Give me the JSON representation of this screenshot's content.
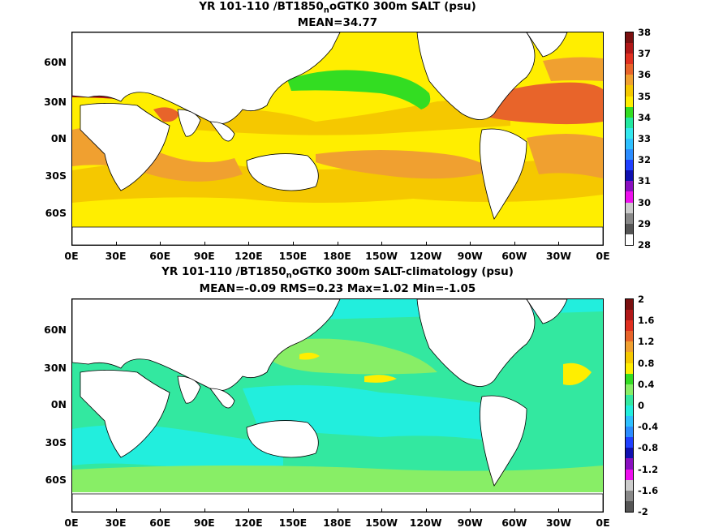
{
  "panels": [
    {
      "title_prefix": "YR 101-110 /BT1850",
      "title_sub": "n",
      "title_suffix": "oGTK0 300m SALT (psu)",
      "stats": "MEAN=34.77",
      "colorbar": {
        "labels": [
          "38",
          "37",
          "36",
          "35",
          "34",
          "33",
          "32",
          "31",
          "30",
          "29",
          "28"
        ],
        "colors": [
          "#7a1010",
          "#b01818",
          "#e03020",
          "#e8642a",
          "#f0a030",
          "#f5c800",
          "#ffee00",
          "#33dd22",
          "#22e8a0",
          "#33e8ee",
          "#2ec0ff",
          "#2b8cff",
          "#2040ff",
          "#1010b0",
          "#8a10c0",
          "#ee10ee",
          "#cccccc",
          "#888888",
          "#555555",
          "#ffffff"
        ]
      }
    },
    {
      "title_prefix": "YR 101-110 /BT1850",
      "title_sub": "n",
      "title_suffix": "oGTK0 300m SALT-climatology (psu)",
      "stats": "MEAN=-0.09   RMS=0.23   Max=1.02   Min=-1.05",
      "colorbar": {
        "labels": [
          "2",
          "1.6",
          "1.2",
          "0.8",
          "0.4",
          "0",
          "-0.4",
          "-0.8",
          "-1.2",
          "-1.6",
          "-2"
        ],
        "colors": [
          "#7a1010",
          "#b01818",
          "#e03020",
          "#e8642a",
          "#f0a030",
          "#f5c800",
          "#ffee00",
          "#33dd22",
          "#88ee66",
          "#33e8a0",
          "#22eedd",
          "#2ec0ff",
          "#2b8cff",
          "#2040ff",
          "#1010b0",
          "#8a10c0",
          "#ee10ee",
          "#cccccc",
          "#888888",
          "#555555"
        ]
      }
    }
  ],
  "lat_labels": [
    "60N",
    "30N",
    "0N",
    "30S",
    "60S"
  ],
  "lon_labels": [
    "0E",
    "30E",
    "60E",
    "90E",
    "120E",
    "150E",
    "180E",
    "150W",
    "120W",
    "90W",
    "60W",
    "30W",
    "0E"
  ],
  "ocean_colors": {
    "top_base": "#ffee00",
    "top_warm": "#f5c800",
    "top_warmer": "#f0a030",
    "top_hot": "#e8642a",
    "top_fresh": "#33dd22",
    "top_med": "#b01818",
    "bot_base": "#33e8a0",
    "bot_pos": "#88ee66",
    "bot_neg": "#22eedd",
    "bot_more_neg": "#2ec0ff",
    "bot_yellow": "#ffee00",
    "bot_blue": "#2b8cff",
    "land": "#ffffff"
  }
}
